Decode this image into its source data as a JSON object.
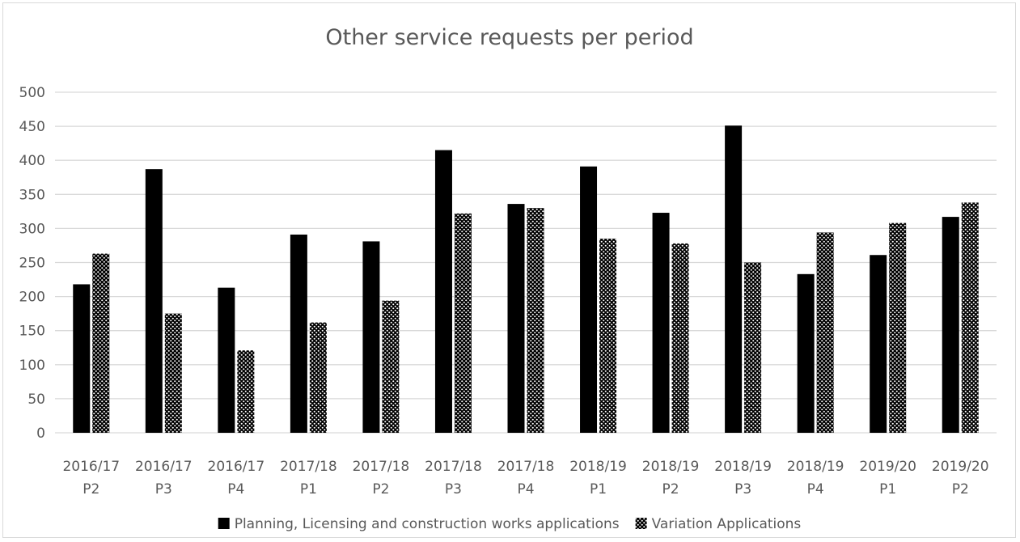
{
  "chart_data": {
    "type": "bar",
    "title": "Other service requests per period",
    "xlabel": "",
    "ylabel": "",
    "ylim": [
      0,
      500
    ],
    "yticks": [
      "0",
      "50",
      "100",
      "150",
      "200",
      "250",
      "300",
      "350",
      "400",
      "450",
      "500"
    ],
    "grid": true,
    "legend_position": "bottom",
    "categories": [
      [
        "2016/17",
        "P2"
      ],
      [
        "2016/17",
        "P3"
      ],
      [
        "2016/17",
        "P4"
      ],
      [
        "2017/18",
        "P1"
      ],
      [
        "2017/18",
        "P2"
      ],
      [
        "2017/18",
        "P3"
      ],
      [
        "2017/18",
        "P4"
      ],
      [
        "2018/19",
        "P1"
      ],
      [
        "2018/19",
        "P2"
      ],
      [
        "2018/19",
        "P3"
      ],
      [
        "2018/19",
        "P4"
      ],
      [
        "2019/20",
        "P1"
      ],
      [
        "2019/20",
        "P2"
      ]
    ],
    "series": [
      {
        "name": "Planning, Licensing and construction works applications",
        "color": "#000000",
        "pattern": "solid",
        "values": [
          218,
          387,
          213,
          291,
          281,
          415,
          336,
          391,
          323,
          451,
          233,
          261,
          317
        ]
      },
      {
        "name": "Variation Applications",
        "color": "#000000",
        "pattern": "dots",
        "values": [
          263,
          175,
          121,
          162,
          194,
          322,
          330,
          285,
          278,
          250,
          294,
          308,
          338
        ]
      }
    ]
  }
}
